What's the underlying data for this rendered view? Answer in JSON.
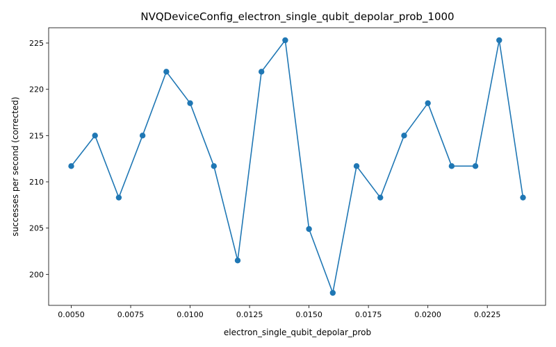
{
  "chart_data": {
    "type": "line",
    "title": "NVQDeviceConfig_electron_single_qubit_depolar_prob_1000",
    "xlabel": "electron_single_qubit_depolar_prob",
    "ylabel": "successes per second (corrected)",
    "x": [
      0.005,
      0.006,
      0.007,
      0.008,
      0.009,
      0.01,
      0.011,
      0.012,
      0.013,
      0.014,
      0.015,
      0.016,
      0.017,
      0.018,
      0.019,
      0.02,
      0.021,
      0.022,
      0.023,
      0.024
    ],
    "series": [
      {
        "values": [
          211.7,
          215.0,
          208.3,
          215.0,
          221.9,
          218.5,
          211.7,
          201.5,
          221.9,
          225.3,
          204.9,
          198.0,
          211.7,
          208.3,
          215.0,
          218.5,
          211.7,
          211.7,
          225.3,
          208.3
        ],
        "color": "#1f77b4",
        "marker": "circle"
      }
    ],
    "xlim": [
      0.00405,
      0.02495
    ],
    "ylim": [
      196.65,
      226.65
    ],
    "xticks": [
      "0.0050",
      "0.0075",
      "0.0100",
      "0.0125",
      "0.0150",
      "0.0175",
      "0.0200",
      "0.0225"
    ],
    "xtick_values": [
      0.005,
      0.0075,
      0.01,
      0.0125,
      0.015,
      0.0175,
      0.02,
      0.0225
    ],
    "yticks": [
      "200",
      "205",
      "210",
      "215",
      "220",
      "225"
    ],
    "ytick_values": [
      200,
      205,
      210,
      215,
      220,
      225
    ],
    "grid": false,
    "legend": "none"
  }
}
